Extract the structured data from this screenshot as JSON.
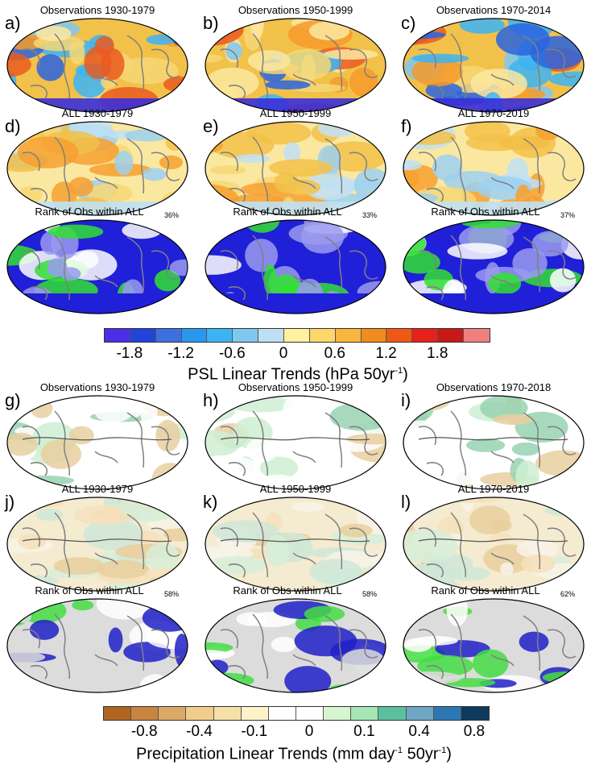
{
  "psl_section": {
    "rows": [
      {
        "kind": "obs",
        "panels": [
          {
            "label": "a)",
            "title": "Observations 1930-1979"
          },
          {
            "label": "b)",
            "title": "Observations 1950-1999"
          },
          {
            "label": "c)",
            "title": "Observations 1970-2014"
          }
        ]
      },
      {
        "kind": "model",
        "panels": [
          {
            "label": "d)",
            "title": "ALL 1930-1979"
          },
          {
            "label": "e)",
            "title": "ALL 1950-1999"
          },
          {
            "label": "f)",
            "title": "ALL 1970-2019"
          }
        ]
      },
      {
        "kind": "rank",
        "panels": [
          {
            "label": "",
            "title": "Rank of Obs within ALL",
            "pct": "36%"
          },
          {
            "label": "",
            "title": "Rank of Obs within ALL",
            "pct": "33%"
          },
          {
            "label": "",
            "title": "Rank of Obs within ALL",
            "pct": "37%"
          }
        ]
      }
    ],
    "colorbar": {
      "colors": [
        "#4b2fe8",
        "#2244d8",
        "#3c6fe0",
        "#2a96ee",
        "#3cb4f4",
        "#7ec8f0",
        "#bfe0f4",
        "#fff1a0",
        "#fcd66a",
        "#f8b63e",
        "#f28c1e",
        "#ee5a16",
        "#e8201a",
        "#c81818",
        "#f08080"
      ],
      "ticks": [
        "-1.8",
        "-1.2",
        "-0.6",
        "0",
        "0.6",
        "1.2",
        "1.8"
      ],
      "title_main": "PSL Linear Trends (hPa 50yr",
      "title_sup": "-1",
      "title_end": ")"
    }
  },
  "pr_section": {
    "rows": [
      {
        "kind": "obs",
        "panels": [
          {
            "label": "g)",
            "title": "Observations 1930-1979"
          },
          {
            "label": "h)",
            "title": "Observations 1950-1999"
          },
          {
            "label": "i)",
            "title": "Observations 1970-2018"
          }
        ]
      },
      {
        "kind": "model",
        "panels": [
          {
            "label": "j)",
            "title": "ALL 1930-1979"
          },
          {
            "label": "k)",
            "title": "ALL 1950-1999"
          },
          {
            "label": "l)",
            "title": "ALL 1970-2019"
          }
        ]
      },
      {
        "kind": "rank",
        "panels": [
          {
            "label": "",
            "title": "Rank of Obs within ALL",
            "pct": "58%"
          },
          {
            "label": "",
            "title": "Rank of Obs within ALL",
            "pct": "58%"
          },
          {
            "label": "",
            "title": "Rank of Obs within ALL",
            "pct": "62%"
          }
        ]
      }
    ],
    "colorbar": {
      "colors": [
        "#b0651e",
        "#c98440",
        "#dca866",
        "#f0cd8a",
        "#f7e0a8",
        "#fdf3c8",
        "#ffffff",
        "#ffffff",
        "#d6f5d0",
        "#a4e6b4",
        "#5cc0a0",
        "#6fa6c4",
        "#2c78b4",
        "#0e3a5e"
      ],
      "ticks": [
        "-0.8",
        "-0.4",
        "-0.1",
        "0",
        "0.1",
        "0.4",
        "0.8"
      ],
      "title_main": "Precipitation Linear Trends (mm day",
      "title_sup1": "-1",
      "title_mid": " 50yr",
      "title_sup2": "-1",
      "title_end": ")"
    }
  }
}
